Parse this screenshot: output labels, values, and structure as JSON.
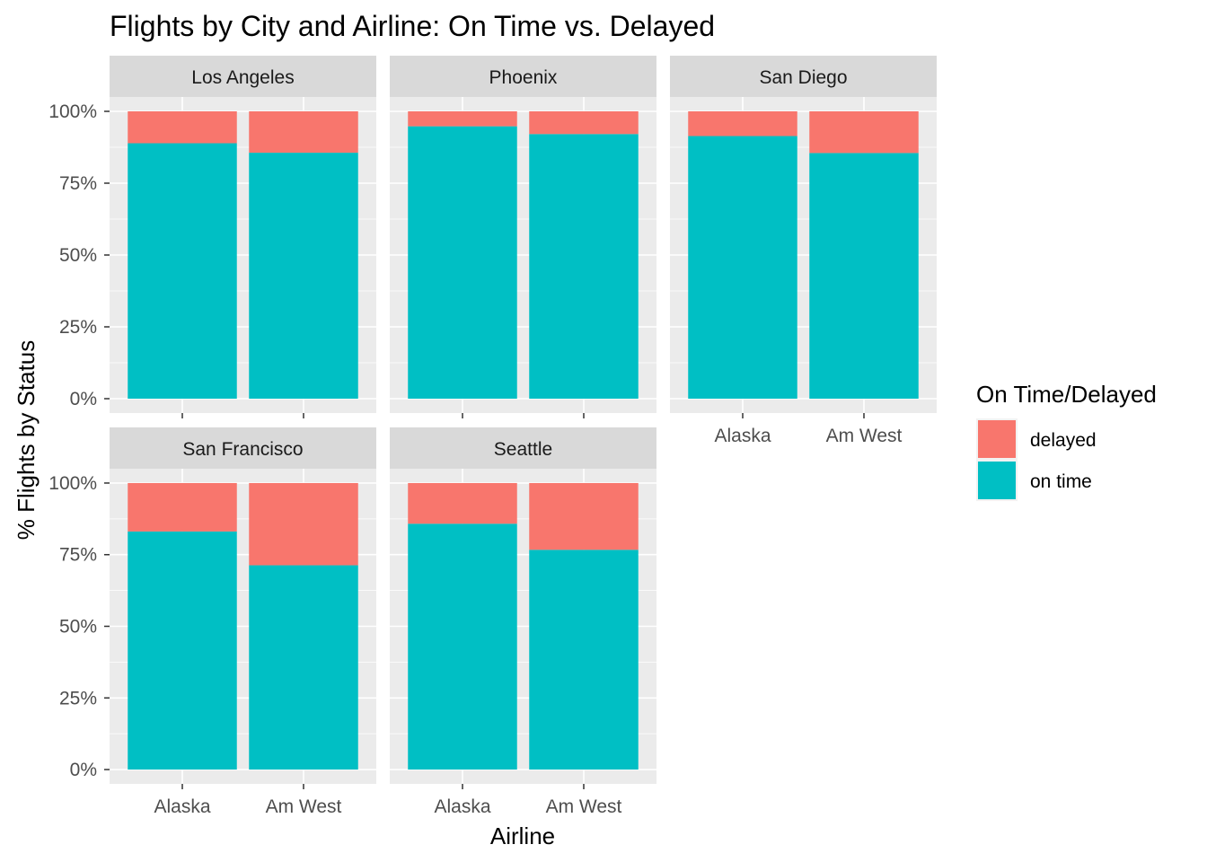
{
  "chart_data": {
    "type": "bar",
    "stacked": true,
    "normalized": true,
    "title": "Flights by City and Airline: On Time vs. Delayed",
    "xlabel": "Airline",
    "ylabel": "% Flights by Status",
    "ylim": [
      0,
      1
    ],
    "y_ticks": [
      "0%",
      "25%",
      "50%",
      "75%",
      "100%"
    ],
    "grid": true,
    "categories": [
      "Alaska",
      "Am West"
    ],
    "legend": {
      "title": "On Time/Delayed",
      "position": "right",
      "entries": [
        {
          "name": "delayed",
          "color": "#F8766D"
        },
        {
          "name": "on time",
          "color": "#00BFC4"
        }
      ]
    },
    "facets": [
      {
        "name": "Los Angeles",
        "on_time": [
          0.889,
          0.856
        ],
        "delayed": [
          0.111,
          0.144
        ]
      },
      {
        "name": "Phoenix",
        "on_time": [
          0.948,
          0.921
        ],
        "delayed": [
          0.052,
          0.079
        ]
      },
      {
        "name": "San Diego",
        "on_time": [
          0.914,
          0.855
        ],
        "delayed": [
          0.086,
          0.145
        ]
      },
      {
        "name": "San Francisco",
        "on_time": [
          0.831,
          0.713
        ],
        "delayed": [
          0.169,
          0.287
        ]
      },
      {
        "name": "Seattle",
        "on_time": [
          0.858,
          0.767
        ],
        "delayed": [
          0.142,
          0.233
        ]
      }
    ]
  }
}
